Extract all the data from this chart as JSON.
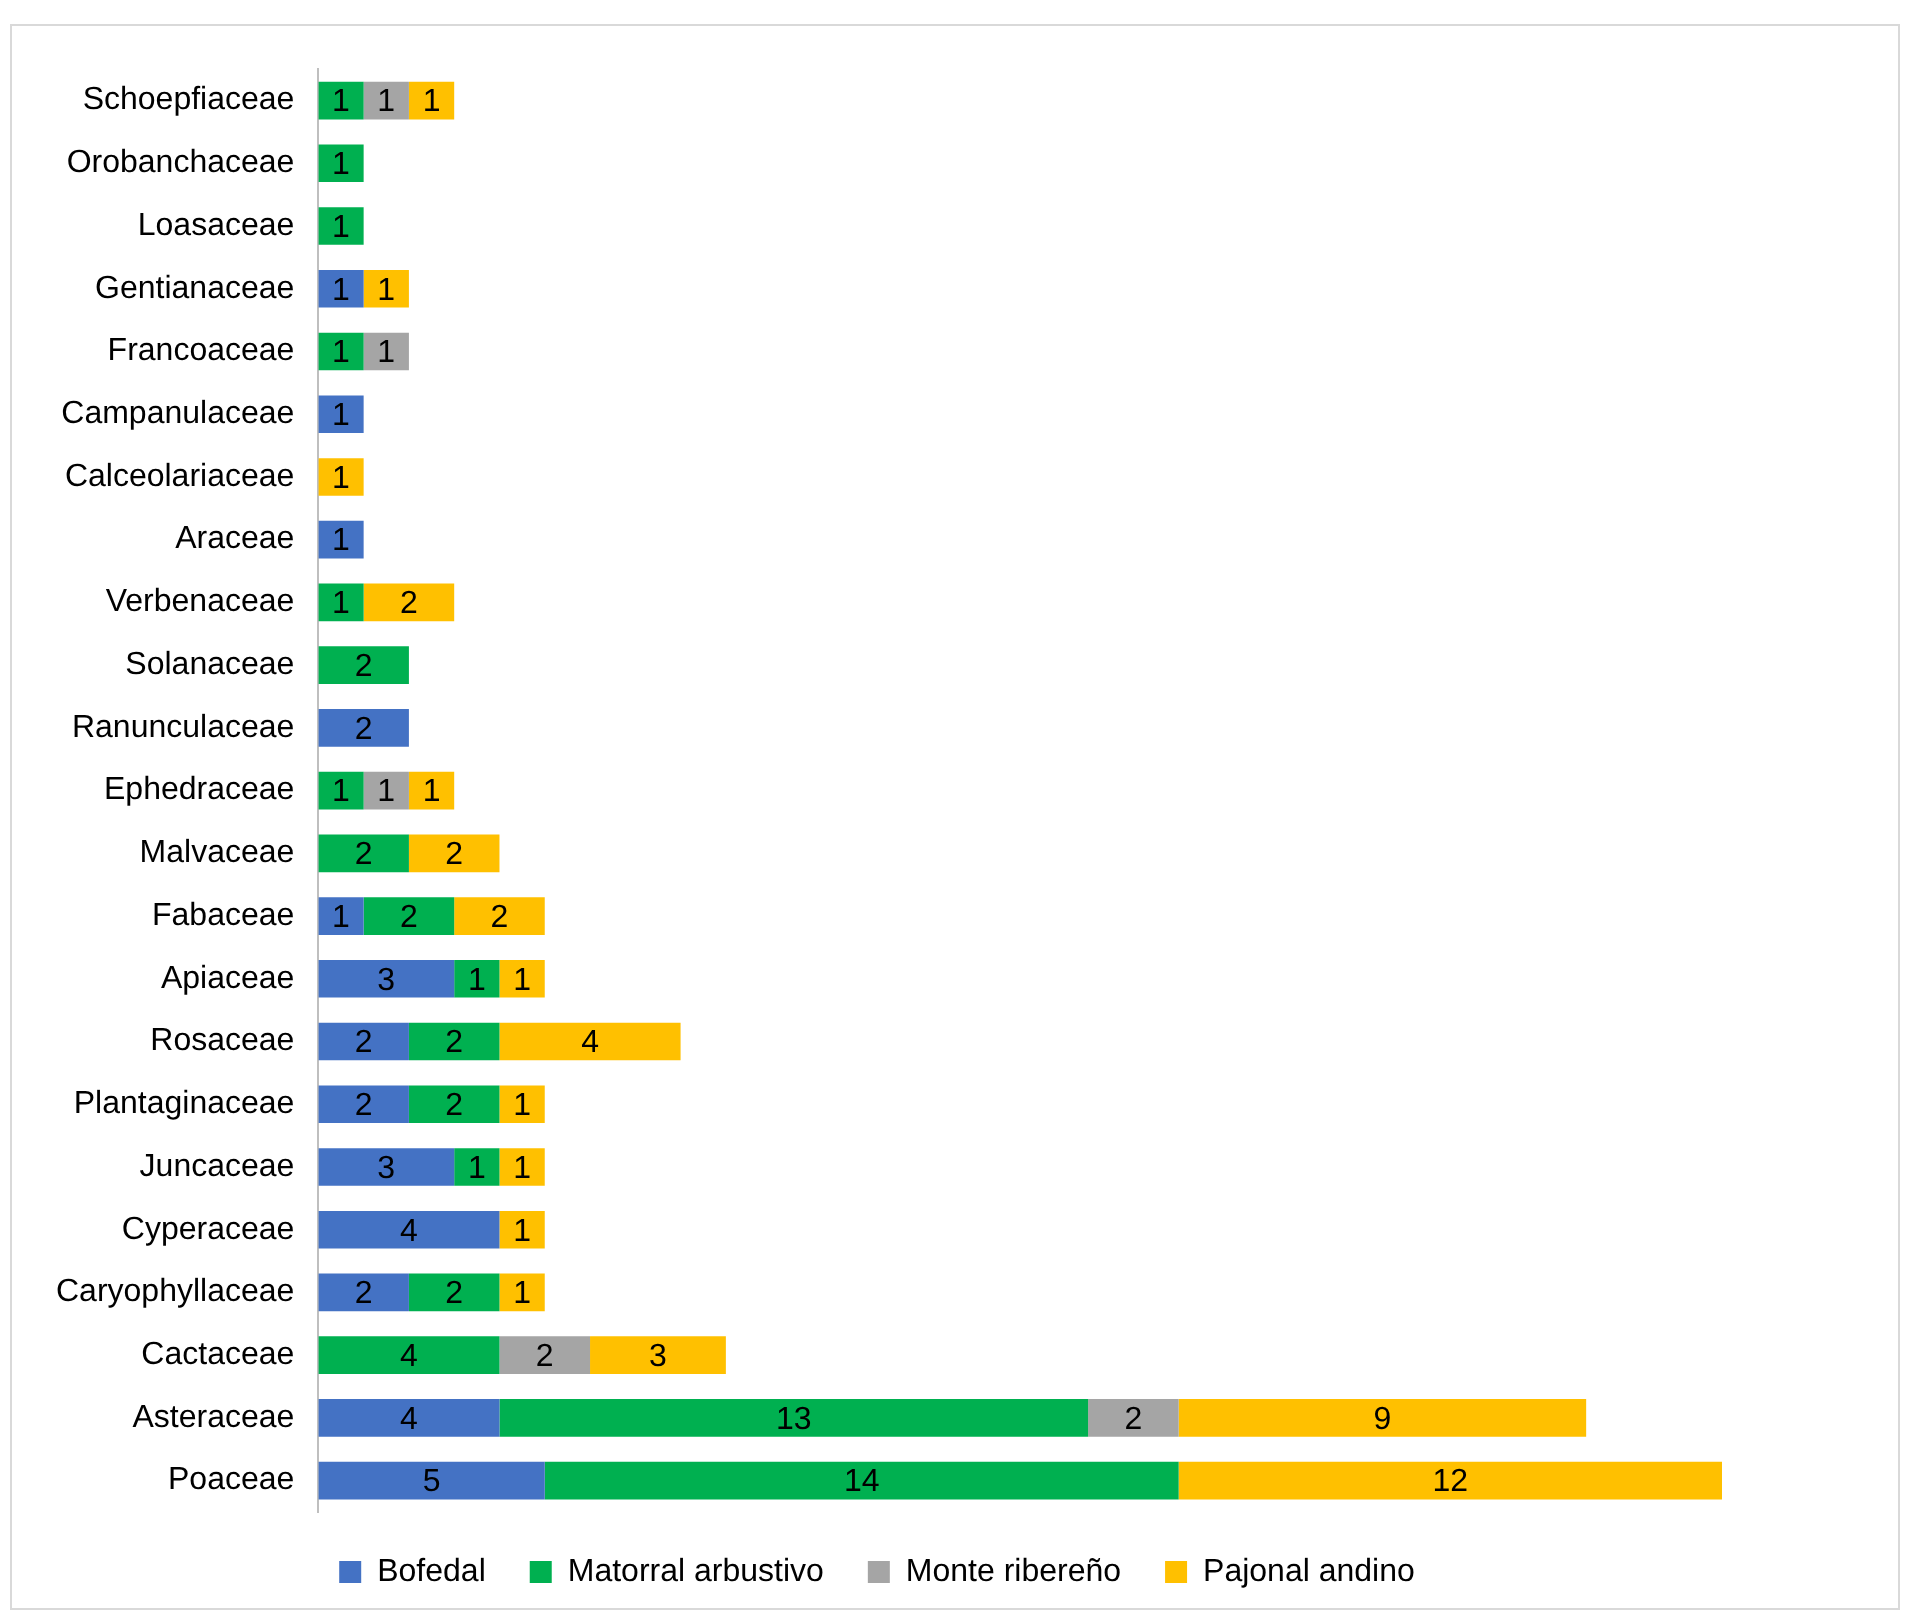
{
  "chart_data": {
    "type": "bar",
    "orientation": "horizontal",
    "stacked": true,
    "data_labels": true,
    "legend": "bottom",
    "categories": [
      "Schoepfiaceae",
      "Orobanchaceae",
      "Loasaceae",
      "Gentianaceae",
      "Francoaceae",
      "Campanulaceae",
      "Calceolariaceae",
      "Araceae",
      "Verbenaceae",
      "Solanaceae",
      "Ranunculaceae",
      "Ephedraceae",
      "Malvaceae",
      "Fabaceae",
      "Apiaceae",
      "Rosaceae",
      "Plantaginaceae",
      "Juncaceae",
      "Cyperaceae",
      "Caryophyllaceae",
      "Cactaceae",
      "Asteraceae",
      "Poaceae"
    ],
    "series": [
      {
        "name": "Bofedal",
        "color": "#4472c4",
        "values": [
          null,
          null,
          null,
          1,
          null,
          1,
          null,
          1,
          null,
          null,
          2,
          null,
          null,
          1,
          3,
          2,
          2,
          3,
          4,
          2,
          null,
          4,
          5
        ]
      },
      {
        "name": "Matorral arbustivo",
        "color": "#00b050",
        "values": [
          1,
          1,
          1,
          null,
          1,
          null,
          null,
          null,
          1,
          2,
          null,
          1,
          2,
          2,
          1,
          2,
          2,
          1,
          null,
          2,
          4,
          13,
          14
        ]
      },
      {
        "name": "Monte ribereño",
        "color": "#a5a5a5",
        "values": [
          1,
          null,
          null,
          null,
          1,
          null,
          null,
          null,
          null,
          null,
          null,
          1,
          null,
          null,
          null,
          null,
          null,
          null,
          null,
          null,
          2,
          2,
          null
        ]
      },
      {
        "name": "Pajonal andino",
        "color": "#ffc000",
        "values": [
          1,
          null,
          null,
          1,
          null,
          null,
          1,
          null,
          2,
          null,
          null,
          1,
          2,
          2,
          1,
          4,
          1,
          1,
          1,
          1,
          3,
          9,
          12
        ]
      }
    ]
  }
}
